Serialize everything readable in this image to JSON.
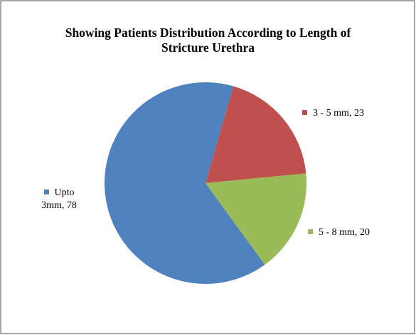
{
  "chart_data": {
    "type": "pie",
    "title": "Showing Patients Distribution According to Length of Stricture Urethra",
    "values": [
      78,
      23,
      20
    ],
    "value_labels": [
      "Upto 3mm, 78",
      "3 - 5 mm, 23",
      "5 - 8 mm, 20"
    ],
    "colors": [
      "#4f81bd",
      "#c0504d",
      "#9bbb59"
    ]
  }
}
